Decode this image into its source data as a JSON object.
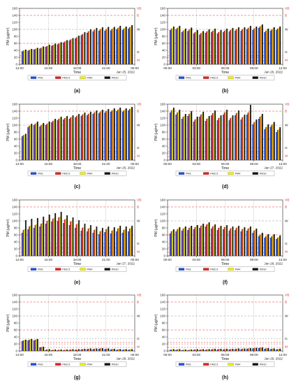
{
  "figure": {
    "colors": {
      "PM1": "#1f4fe0",
      "PM2.5": "#e02020",
      "PM4": "#f2f200",
      "PM10": "#111111",
      "threshold": "#e03030",
      "grid": "#999999"
    },
    "legend_labels": [
      "PM1",
      "PM2.5",
      "PM4",
      "PM10"
    ]
  },
  "chart_data": [
    {
      "id": "a",
      "caption": "(a)",
      "type": "bar",
      "ylabel": "PM (μg/m³)",
      "xlabel": "Time",
      "date_label": "Jan 25, 2022",
      "ylim": [
        0,
        160
      ],
      "yticks": [
        "0",
        "20",
        "40",
        "60",
        "80",
        "100",
        "120",
        "140",
        "160"
      ],
      "xticks": [
        "12:00",
        "15:00",
        "18:00",
        "21:00",
        "00:00"
      ],
      "thresholds": [
        "G",
        "M",
        "W",
        "B",
        "VB"
      ],
      "series": [
        {
          "name": "PM1",
          "values": [
            37,
            39,
            42,
            45,
            50,
            53,
            57,
            62,
            68,
            74,
            83,
            90,
            94,
            96,
            96,
            97,
            100,
            98,
            102
          ]
        },
        {
          "name": "PM2.5",
          "values": [
            39,
            41,
            44,
            47,
            52,
            55,
            59,
            65,
            71,
            77,
            86,
            94,
            98,
            100,
            100,
            101,
            104,
            102,
            106
          ]
        },
        {
          "name": "PM4",
          "values": [
            40,
            42,
            45,
            48,
            53,
            56,
            61,
            66,
            72,
            79,
            88,
            96,
            100,
            102,
            103,
            103,
            106,
            104,
            108
          ]
        },
        {
          "name": "PM10",
          "values": [
            42,
            44,
            47,
            51,
            56,
            59,
            63,
            69,
            75,
            82,
            92,
            100,
            104,
            106,
            107,
            107,
            110,
            108,
            112
          ]
        }
      ]
    },
    {
      "id": "b",
      "caption": "(b)",
      "type": "bar",
      "ylabel": "PM (μg/m³)",
      "xlabel": "Time",
      "date_label": "Jan 26, 2022",
      "ylim": [
        0,
        160
      ],
      "yticks": [
        "0",
        "20",
        "40",
        "60",
        "80",
        "100",
        "120",
        "140",
        "160"
      ],
      "xticks": [
        "00:00",
        "03:00",
        "06:00",
        "09:00",
        "12:00"
      ],
      "thresholds": [
        "G",
        "M",
        "W",
        "B",
        "VB"
      ],
      "series": [
        {
          "name": "PM1",
          "values": [
            98,
            100,
            92,
            95,
            88,
            85,
            90,
            92,
            88,
            92,
            94,
            96,
            96,
            100,
            98,
            104,
            92,
            96,
            98
          ]
        },
        {
          "name": "PM2.5",
          "values": [
            102,
            104,
            96,
            99,
            92,
            89,
            94,
            96,
            92,
            96,
            98,
            100,
            100,
            104,
            102,
            108,
            96,
            100,
            102
          ]
        },
        {
          "name": "PM4",
          "values": [
            104,
            106,
            98,
            101,
            94,
            91,
            96,
            98,
            94,
            98,
            100,
            102,
            102,
            106,
            104,
            110,
            98,
            102,
            104
          ]
        },
        {
          "name": "PM10",
          "values": [
            108,
            110,
            102,
            105,
            98,
            95,
            100,
            102,
            98,
            102,
            104,
            106,
            106,
            110,
            108,
            114,
            102,
            106,
            108
          ]
        }
      ]
    },
    {
      "id": "c",
      "caption": "(c)",
      "type": "bar",
      "ylabel": "PM (μg/m³)",
      "xlabel": "Time",
      "date_label": "Jan 26, 2022",
      "ylim": [
        0,
        160
      ],
      "yticks": [
        "0",
        "20",
        "40",
        "60",
        "80",
        "100",
        "120",
        "140",
        "160"
      ],
      "xticks": [
        "12:00",
        "15:00",
        "18:00",
        "21:00",
        "00:00"
      ],
      "thresholds": [
        "G",
        "M",
        "W",
        "B",
        "VB"
      ],
      "series": [
        {
          "name": "PM1",
          "values": [
            68,
            94,
            100,
            96,
            100,
            108,
            114,
            116,
            118,
            122,
            126,
            128,
            132,
            134,
            136,
            138,
            140,
            138,
            142
          ]
        },
        {
          "name": "PM2.5",
          "values": [
            71,
            98,
            104,
            100,
            104,
            112,
            118,
            120,
            122,
            126,
            130,
            132,
            136,
            138,
            140,
            142,
            144,
            142,
            146
          ]
        },
        {
          "name": "PM4",
          "values": [
            72,
            100,
            106,
            102,
            106,
            114,
            120,
            122,
            124,
            128,
            132,
            134,
            138,
            140,
            142,
            144,
            146,
            144,
            148
          ]
        },
        {
          "name": "PM10",
          "values": [
            75,
            104,
            110,
            106,
            110,
            118,
            124,
            126,
            128,
            132,
            136,
            138,
            142,
            144,
            146,
            148,
            150,
            148,
            152
          ]
        }
      ]
    },
    {
      "id": "d",
      "caption": "(d)",
      "type": "bar",
      "ylabel": "PM (μg/m³)",
      "xlabel": "Time",
      "date_label": "Jan 27, 2022",
      "ylim": [
        0,
        160
      ],
      "yticks": [
        "0",
        "20",
        "40",
        "60",
        "80",
        "100",
        "120",
        "140",
        "160"
      ],
      "xticks": [
        "00:00",
        "03:00",
        "06:00",
        "09:00",
        "12:00"
      ],
      "thresholds": [
        "G",
        "M",
        "W",
        "B",
        "VB"
      ],
      "series": [
        {
          "name": "PM1",
          "values": [
            136,
            130,
            118,
            126,
            110,
            124,
            112,
            128,
            114,
            130,
            114,
            128,
            116,
            130,
            102,
            118,
            88,
            95,
            80
          ]
        },
        {
          "name": "PM2.5",
          "values": [
            142,
            136,
            124,
            132,
            116,
            130,
            118,
            134,
            120,
            136,
            120,
            134,
            122,
            136,
            108,
            124,
            94,
            101,
            86
          ]
        },
        {
          "name": "PM4",
          "values": [
            144,
            138,
            126,
            134,
            118,
            132,
            120,
            136,
            122,
            138,
            122,
            136,
            124,
            138,
            110,
            126,
            96,
            103,
            88
          ]
        },
        {
          "name": "PM10",
          "values": [
            150,
            144,
            132,
            140,
            124,
            138,
            126,
            142,
            128,
            144,
            128,
            142,
            130,
            158,
            116,
            132,
            102,
            109,
            94
          ]
        }
      ]
    },
    {
      "id": "e",
      "caption": "(e)",
      "type": "bar",
      "ylabel": "PM (μg/m³)",
      "xlabel": "Time",
      "date_label": "Jan 27, 2022",
      "ylim": [
        0,
        160
      ],
      "yticks": [
        "0",
        "20",
        "40",
        "60",
        "80",
        "100",
        "120",
        "140",
        "160"
      ],
      "xticks": [
        "12:00",
        "15:00",
        "18:00",
        "21:00",
        "00:00"
      ],
      "thresholds": [
        "G",
        "M",
        "W",
        "B",
        "VB"
      ],
      "series": [
        {
          "name": "PM1",
          "values": [
            66,
            76,
            80,
            84,
            92,
            98,
            100,
            94,
            88,
            80,
            72,
            70,
            66,
            62,
            68,
            64,
            70,
            66,
            70
          ]
        },
        {
          "name": "PM2.5",
          "values": [
            74,
            84,
            88,
            92,
            100,
            106,
            110,
            104,
            98,
            90,
            80,
            78,
            74,
            70,
            76,
            72,
            78,
            74,
            78
          ]
        },
        {
          "name": "PM4",
          "values": [
            76,
            86,
            90,
            94,
            102,
            108,
            112,
            106,
            100,
            92,
            82,
            80,
            76,
            72,
            78,
            74,
            80,
            76,
            80
          ]
        },
        {
          "name": "PM10",
          "values": [
            102,
            106,
            108,
            112,
            118,
            122,
            126,
            116,
            110,
            102,
            92,
            88,
            84,
            80,
            84,
            82,
            86,
            84,
            86
          ]
        }
      ]
    },
    {
      "id": "f",
      "caption": "(f)",
      "type": "bar",
      "ylabel": "PM (μg/m³)",
      "xlabel": "Time",
      "date_label": "Jan 28, 2022",
      "ylim": [
        0,
        160
      ],
      "yticks": [
        "0",
        "20",
        "40",
        "60",
        "80",
        "100",
        "120",
        "140",
        "160"
      ],
      "xticks": [
        "00:00",
        "03:00",
        "06:00",
        "09:00",
        "12:00"
      ],
      "thresholds": [
        "G",
        "M",
        "W",
        "B",
        "VB"
      ],
      "series": [
        {
          "name": "PM1",
          "values": [
            64,
            70,
            72,
            74,
            76,
            80,
            84,
            78,
            74,
            76,
            72,
            74,
            70,
            72,
            66,
            56,
            52,
            52,
            48
          ]
        },
        {
          "name": "PM2.5",
          "values": [
            70,
            76,
            78,
            80,
            82,
            86,
            90,
            84,
            80,
            82,
            78,
            80,
            76,
            78,
            72,
            60,
            56,
            56,
            52
          ]
        },
        {
          "name": "PM4",
          "values": [
            72,
            78,
            80,
            82,
            84,
            88,
            92,
            86,
            82,
            84,
            80,
            82,
            78,
            80,
            74,
            62,
            58,
            58,
            54
          ]
        },
        {
          "name": "PM10",
          "values": [
            76,
            82,
            84,
            86,
            88,
            92,
            96,
            90,
            86,
            88,
            84,
            86,
            82,
            84,
            78,
            66,
            62,
            62,
            58
          ]
        }
      ]
    },
    {
      "id": "g",
      "caption": "(g)",
      "type": "bar",
      "ylabel": "PM (μg/m³)",
      "xlabel": "Time",
      "date_label": "Jan 28, 2022",
      "ylim": [
        0,
        160
      ],
      "yticks": [
        "0",
        "20",
        "40",
        "60",
        "80",
        "100",
        "120",
        "140",
        "160"
      ],
      "xticks": [
        "12:00",
        "15:00",
        "18:00",
        "21:00",
        "00:00"
      ],
      "thresholds": [
        "G",
        "M",
        "W",
        "B",
        "VB"
      ],
      "series": [
        {
          "name": "PM1",
          "values": [
            28,
            30,
            30,
            10,
            3,
            2,
            2,
            2,
            3,
            3,
            4,
            5,
            5,
            6,
            5,
            4,
            3,
            3,
            3
          ]
        },
        {
          "name": "PM2.5",
          "values": [
            30,
            32,
            32,
            11,
            4,
            3,
            3,
            3,
            4,
            4,
            5,
            6,
            6,
            7,
            6,
            5,
            4,
            4,
            4
          ]
        },
        {
          "name": "PM4",
          "values": [
            31,
            33,
            33,
            11,
            4,
            3,
            3,
            3,
            4,
            4,
            5,
            6,
            6,
            7,
            6,
            5,
            4,
            4,
            4
          ]
        },
        {
          "name": "PM10",
          "values": [
            32,
            34,
            34,
            12,
            5,
            4,
            4,
            4,
            5,
            5,
            6,
            7,
            7,
            8,
            7,
            6,
            5,
            5,
            5
          ]
        }
      ]
    },
    {
      "id": "h",
      "caption": "(h)",
      "type": "bar",
      "ylabel": "PM (μg/m³)",
      "xlabel": "Time",
      "date_label": "Jan 29, 2022",
      "ylim": [
        0,
        160
      ],
      "yticks": [
        "0",
        "20",
        "40",
        "60",
        "80",
        "100",
        "120",
        "140",
        "160"
      ],
      "xticks": [
        "00:00",
        "03:00",
        "06:00",
        "09:00",
        "12:00"
      ],
      "thresholds": [
        "G",
        "M",
        "W",
        "B",
        "VB"
      ],
      "series": [
        {
          "name": "PM1",
          "values": [
            3,
            3,
            2,
            2,
            3,
            3,
            3,
            4,
            4,
            4,
            4,
            5,
            5,
            6,
            7,
            8,
            6,
            5,
            4
          ]
        },
        {
          "name": "PM2.5",
          "values": [
            4,
            4,
            3,
            3,
            4,
            4,
            4,
            5,
            5,
            5,
            5,
            6,
            6,
            7,
            8,
            9,
            7,
            6,
            5
          ]
        },
        {
          "name": "PM4",
          "values": [
            4,
            4,
            3,
            3,
            4,
            4,
            4,
            5,
            5,
            5,
            5,
            6,
            6,
            7,
            8,
            9,
            7,
            6,
            5
          ]
        },
        {
          "name": "PM10",
          "values": [
            5,
            5,
            4,
            4,
            5,
            5,
            5,
            6,
            6,
            6,
            6,
            7,
            7,
            8,
            9,
            10,
            8,
            7,
            6
          ]
        }
      ]
    }
  ]
}
